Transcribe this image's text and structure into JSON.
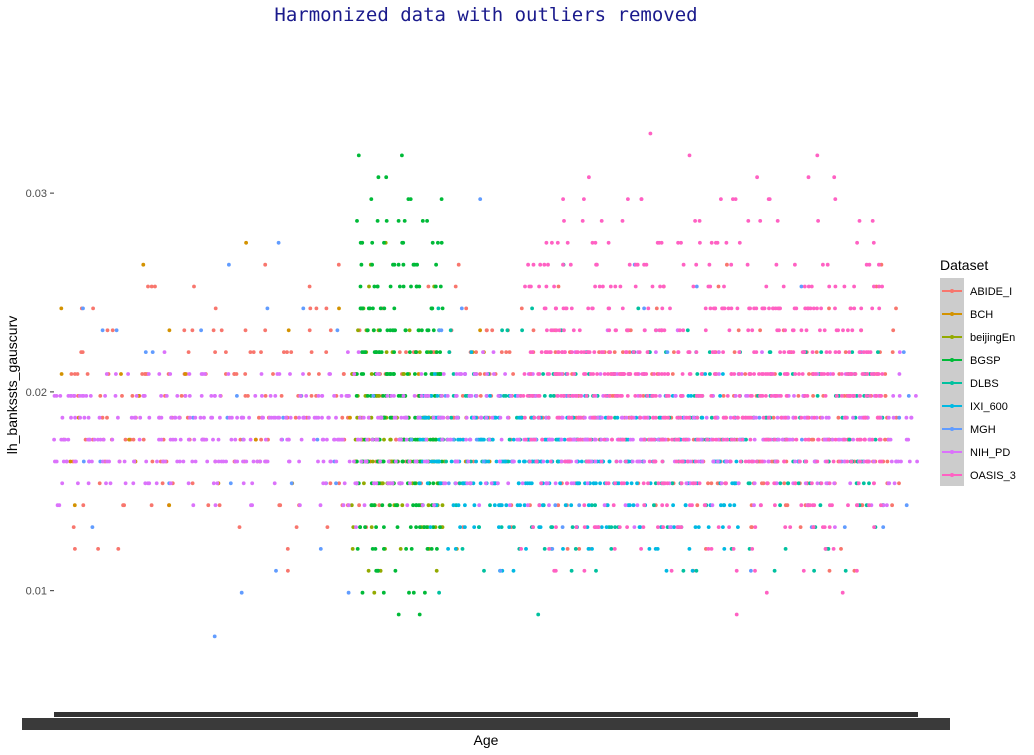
{
  "chart_data": {
    "type": "scatter",
    "title": "Harmonized data with outliers removed",
    "xlabel": "Age",
    "ylabel": "lh_bankssts_gauscurv",
    "y_ticks": [
      "0.01",
      "0.02",
      "0.03"
    ],
    "y_tick_values": [
      0.01,
      0.02,
      0.03
    ],
    "ylim": [
      0.0045,
      0.0372
    ],
    "x_tick_labels_overplotted": true,
    "grid": false,
    "legend": {
      "title": "Dataset",
      "placement": "right"
    },
    "series": [
      {
        "name": "ABIDE_I",
        "color": "#F8766D",
        "x_range": [
          0.02,
          0.98
        ],
        "y_center": 0.0188,
        "y_spread": 0.0042
      },
      {
        "name": "BCH",
        "color": "#D39200",
        "x_range": [
          0.0,
          0.52
        ],
        "y_center": 0.018,
        "y_spread": 0.005
      },
      {
        "name": "beijingEn",
        "color": "#93AA00",
        "x_range": [
          0.34,
          0.45
        ],
        "y_center": 0.018,
        "y_spread": 0.005
      },
      {
        "name": "BGSP",
        "color": "#00BA38",
        "x_range": [
          0.35,
          0.45
        ],
        "y_center": 0.02,
        "y_spread": 0.0065
      },
      {
        "name": "DLBS",
        "color": "#00C19F",
        "x_range": [
          0.44,
          0.96
        ],
        "y_center": 0.0175,
        "y_spread": 0.0042
      },
      {
        "name": "IXI_600",
        "color": "#00B9E3",
        "x_range": [
          0.42,
          0.8
        ],
        "y_center": 0.0165,
        "y_spread": 0.003
      },
      {
        "name": "MGH",
        "color": "#619CFF",
        "x_range": [
          0.0,
          0.99
        ],
        "y_center": 0.018,
        "y_spread": 0.0055
      },
      {
        "name": "NIH_PD",
        "color": "#DB72FB",
        "x_range": [
          0.0,
          1.0
        ],
        "y_center": 0.018,
        "y_spread": 0.0025
      },
      {
        "name": "OASIS_3",
        "color": "#FF61C3",
        "x_range": [
          0.54,
          0.96
        ],
        "y_center": 0.0205,
        "y_spread": 0.0058
      }
    ]
  }
}
